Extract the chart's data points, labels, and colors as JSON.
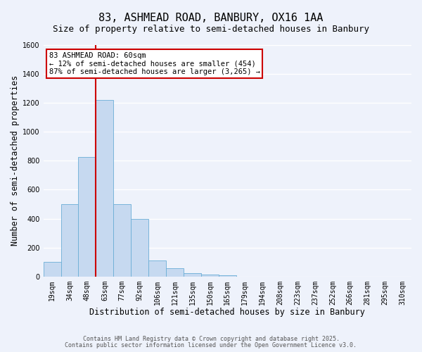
{
  "title1": "83, ASHMEAD ROAD, BANBURY, OX16 1AA",
  "title2": "Size of property relative to semi-detached houses in Banbury",
  "xlabel": "Distribution of semi-detached houses by size in Banbury",
  "ylabel": "Number of semi-detached properties",
  "bin_labels": [
    "19sqm",
    "34sqm",
    "48sqm",
    "63sqm",
    "77sqm",
    "92sqm",
    "106sqm",
    "121sqm",
    "135sqm",
    "150sqm",
    "165sqm",
    "179sqm",
    "194sqm",
    "208sqm",
    "223sqm",
    "237sqm",
    "252sqm",
    "266sqm",
    "281sqm",
    "295sqm",
    "310sqm"
  ],
  "bar_values": [
    100,
    500,
    825,
    1220,
    500,
    400,
    110,
    55,
    25,
    15,
    10,
    0,
    0,
    0,
    0,
    0,
    0,
    0,
    0,
    0,
    0
  ],
  "bar_color": "#c6d9f0",
  "bar_edge_color": "#6baed6",
  "background_color": "#eef2fb",
  "grid_color": "#ffffff",
  "vline_color": "#cc0000",
  "vline_index": 3,
  "ylim": [
    0,
    1600
  ],
  "yticks": [
    0,
    200,
    400,
    600,
    800,
    1000,
    1200,
    1400,
    1600
  ],
  "annotation_title": "83 ASHMEAD ROAD: 60sqm",
  "annotation_line1": "← 12% of semi-detached houses are smaller (454)",
  "annotation_line2": "87% of semi-detached houses are larger (3,265) →",
  "annotation_box_facecolor": "#ffffff",
  "annotation_box_edgecolor": "#cc0000",
  "footer1": "Contains HM Land Registry data © Crown copyright and database right 2025.",
  "footer2": "Contains public sector information licensed under the Open Government Licence v3.0.",
  "title_fontsize": 11,
  "subtitle_fontsize": 9,
  "xlabel_fontsize": 8.5,
  "ylabel_fontsize": 8.5,
  "tick_fontsize": 7,
  "annotation_fontsize": 7.5,
  "footer_fontsize": 6
}
